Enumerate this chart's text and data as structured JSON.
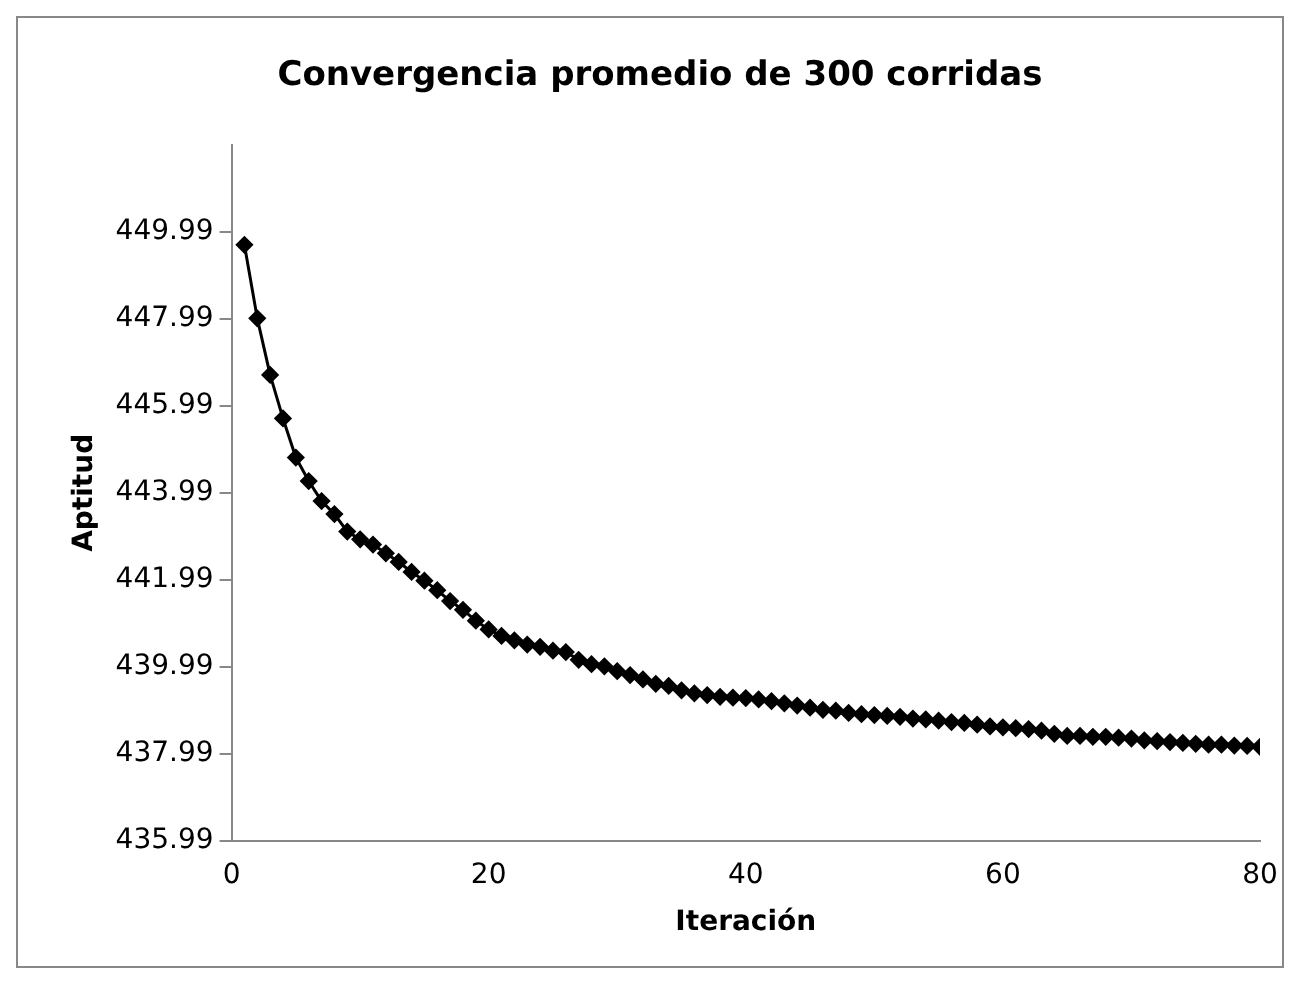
{
  "chart_data": {
    "type": "line",
    "title": "Convergencia promedio de 300 corridas",
    "xlabel": "Iteración",
    "ylabel": "Aptitud",
    "x": [
      1,
      2,
      3,
      4,
      5,
      6,
      7,
      8,
      9,
      10,
      11,
      12,
      13,
      14,
      15,
      16,
      17,
      18,
      19,
      20,
      21,
      22,
      23,
      24,
      25,
      26,
      27,
      28,
      29,
      30,
      31,
      32,
      33,
      34,
      35,
      36,
      37,
      38,
      39,
      40,
      41,
      42,
      43,
      44,
      45,
      46,
      47,
      48,
      49,
      50,
      51,
      52,
      53,
      54,
      55,
      56,
      57,
      58,
      59,
      60,
      61,
      62,
      63,
      64,
      65,
      66,
      67,
      68,
      69,
      70,
      71,
      72,
      73,
      74,
      75,
      76,
      77,
      78,
      79,
      80
    ],
    "series": [
      {
        "color": "#000000",
        "values": [
          449.69,
          448.0,
          446.7,
          445.7,
          444.8,
          444.26,
          443.8,
          443.5,
          443.1,
          442.92,
          442.8,
          442.6,
          442.4,
          442.17,
          441.97,
          441.75,
          441.5,
          441.3,
          441.05,
          440.85,
          440.7,
          440.6,
          440.5,
          440.45,
          440.36,
          440.33,
          440.15,
          440.05,
          440.0,
          439.89,
          439.8,
          439.7,
          439.6,
          439.55,
          439.45,
          439.38,
          439.34,
          439.3,
          439.28,
          439.27,
          439.24,
          439.2,
          439.15,
          439.1,
          439.05,
          439.0,
          438.98,
          438.93,
          438.9,
          438.88,
          438.86,
          438.84,
          438.8,
          438.78,
          438.75,
          438.72,
          438.7,
          438.66,
          438.62,
          438.6,
          438.58,
          438.56,
          438.52,
          438.45,
          438.4,
          438.4,
          438.38,
          438.38,
          438.36,
          438.34,
          438.3,
          438.28,
          438.26,
          438.24,
          438.22,
          438.2,
          438.2,
          438.18,
          438.17,
          438.15
        ]
      }
    ],
    "xlim": [
      0,
      80
    ],
    "xticks": [
      0,
      20,
      40,
      60,
      80
    ],
    "ylim": [
      435.99,
      451.99
    ],
    "yticks": [
      435.99,
      437.99,
      439.99,
      441.99,
      443.99,
      445.99,
      447.99,
      449.99
    ],
    "grid": false,
    "legend": false,
    "marker": "diamond",
    "line_style": "solid"
  }
}
